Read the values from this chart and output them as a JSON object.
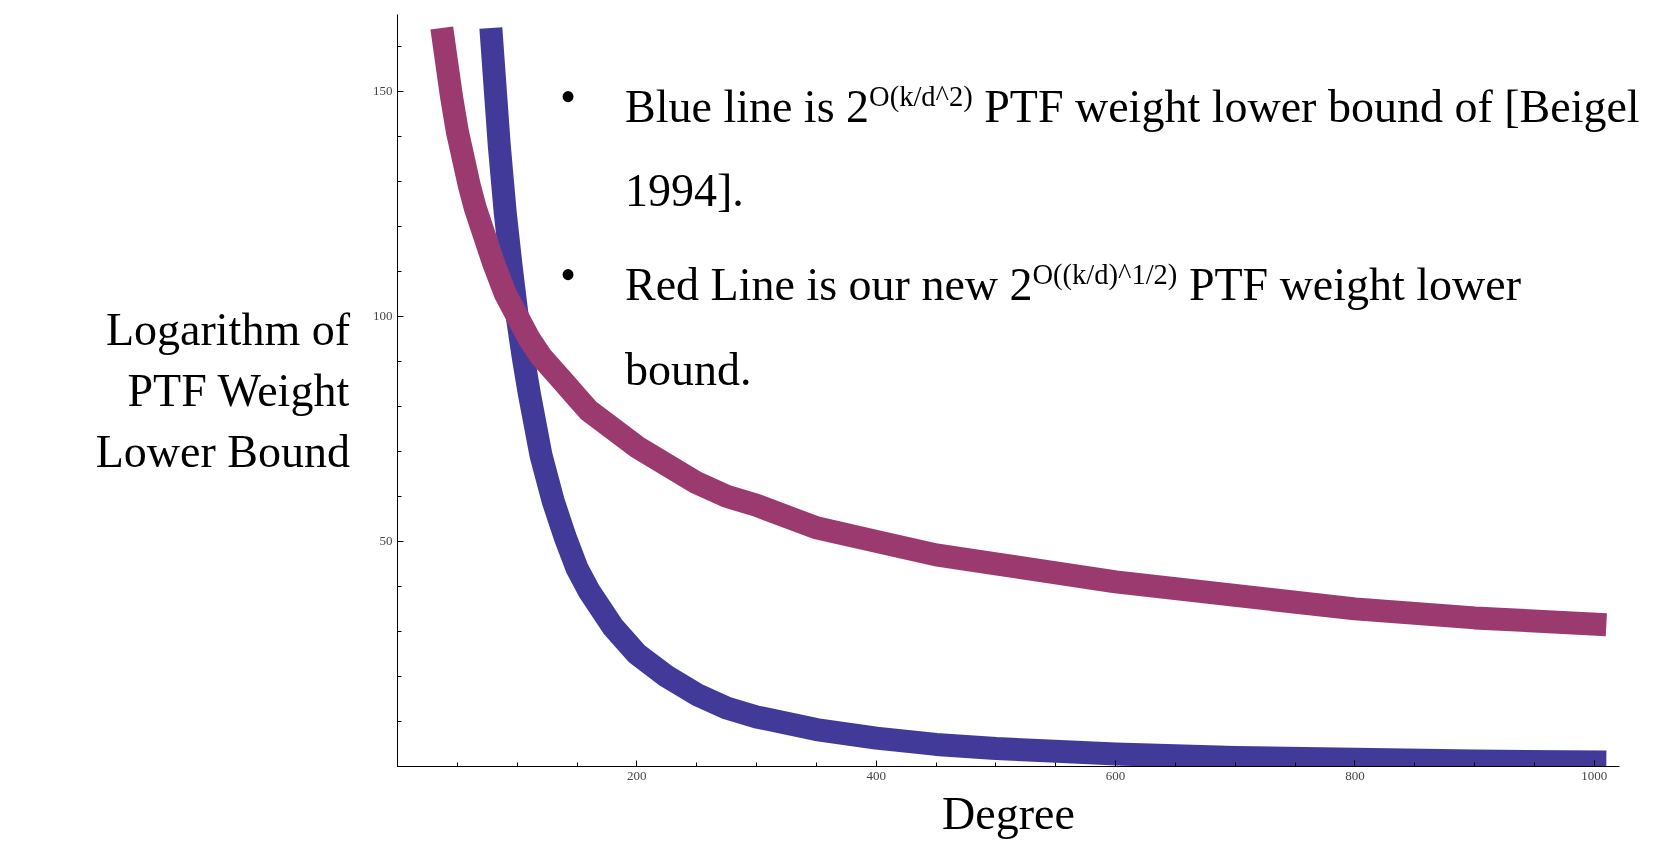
{
  "chart_data": {
    "type": "line",
    "xlabel": "Degree",
    "ylabel": "Logarithm of PTF Weight Lower Bound",
    "xlim": [
      0,
      1021
    ],
    "ylim": [
      0,
      167
    ],
    "xticks": [
      200,
      400,
      600,
      800,
      1000
    ],
    "yticks": [
      50,
      100,
      150
    ],
    "grid": false,
    "series": [
      {
        "color": "#423a99",
        "x": [
          78,
          85,
          90,
          95,
          100,
          105,
          110,
          115,
          120,
          130,
          140,
          150,
          160,
          170,
          180,
          190,
          200,
          225,
          250,
          275,
          300,
          350,
          400,
          450,
          500,
          600,
          700,
          800,
          900,
          1010
        ],
        "values": [
          164,
          138,
          123,
          111,
          100,
          91,
          83,
          76,
          69,
          59,
          51,
          44,
          39,
          35,
          31,
          28,
          25,
          20,
          16,
          13,
          11,
          8.2,
          6.3,
          4.9,
          4,
          2.8,
          2,
          1.6,
          1.2,
          1
        ]
      },
      {
        "color": "#9b3a6f",
        "x": [
          37,
          45,
          50,
          55,
          60,
          65,
          70,
          80,
          90,
          100,
          110,
          120,
          130,
          140,
          150,
          160,
          180,
          200,
          225,
          250,
          275,
          300,
          350,
          400,
          450,
          500,
          600,
          700,
          800,
          900,
          1010
        ],
        "values": [
          164,
          149,
          141,
          135,
          129,
          124,
          120,
          112,
          105,
          100,
          95,
          91,
          88,
          85,
          82,
          79,
          75,
          71,
          67,
          63,
          60,
          58,
          53,
          50,
          47,
          45,
          41,
          38,
          35,
          33,
          31.5
        ]
      }
    ],
    "annotations": [
      "• Blue line is 2$^{O(k/d^2)}$ PTF weight lower bound of [Beigel 1994].",
      "• Red Line is our new 2$^{O((k/d)^1/2)}$ PTF weight lower bound."
    ]
  }
}
